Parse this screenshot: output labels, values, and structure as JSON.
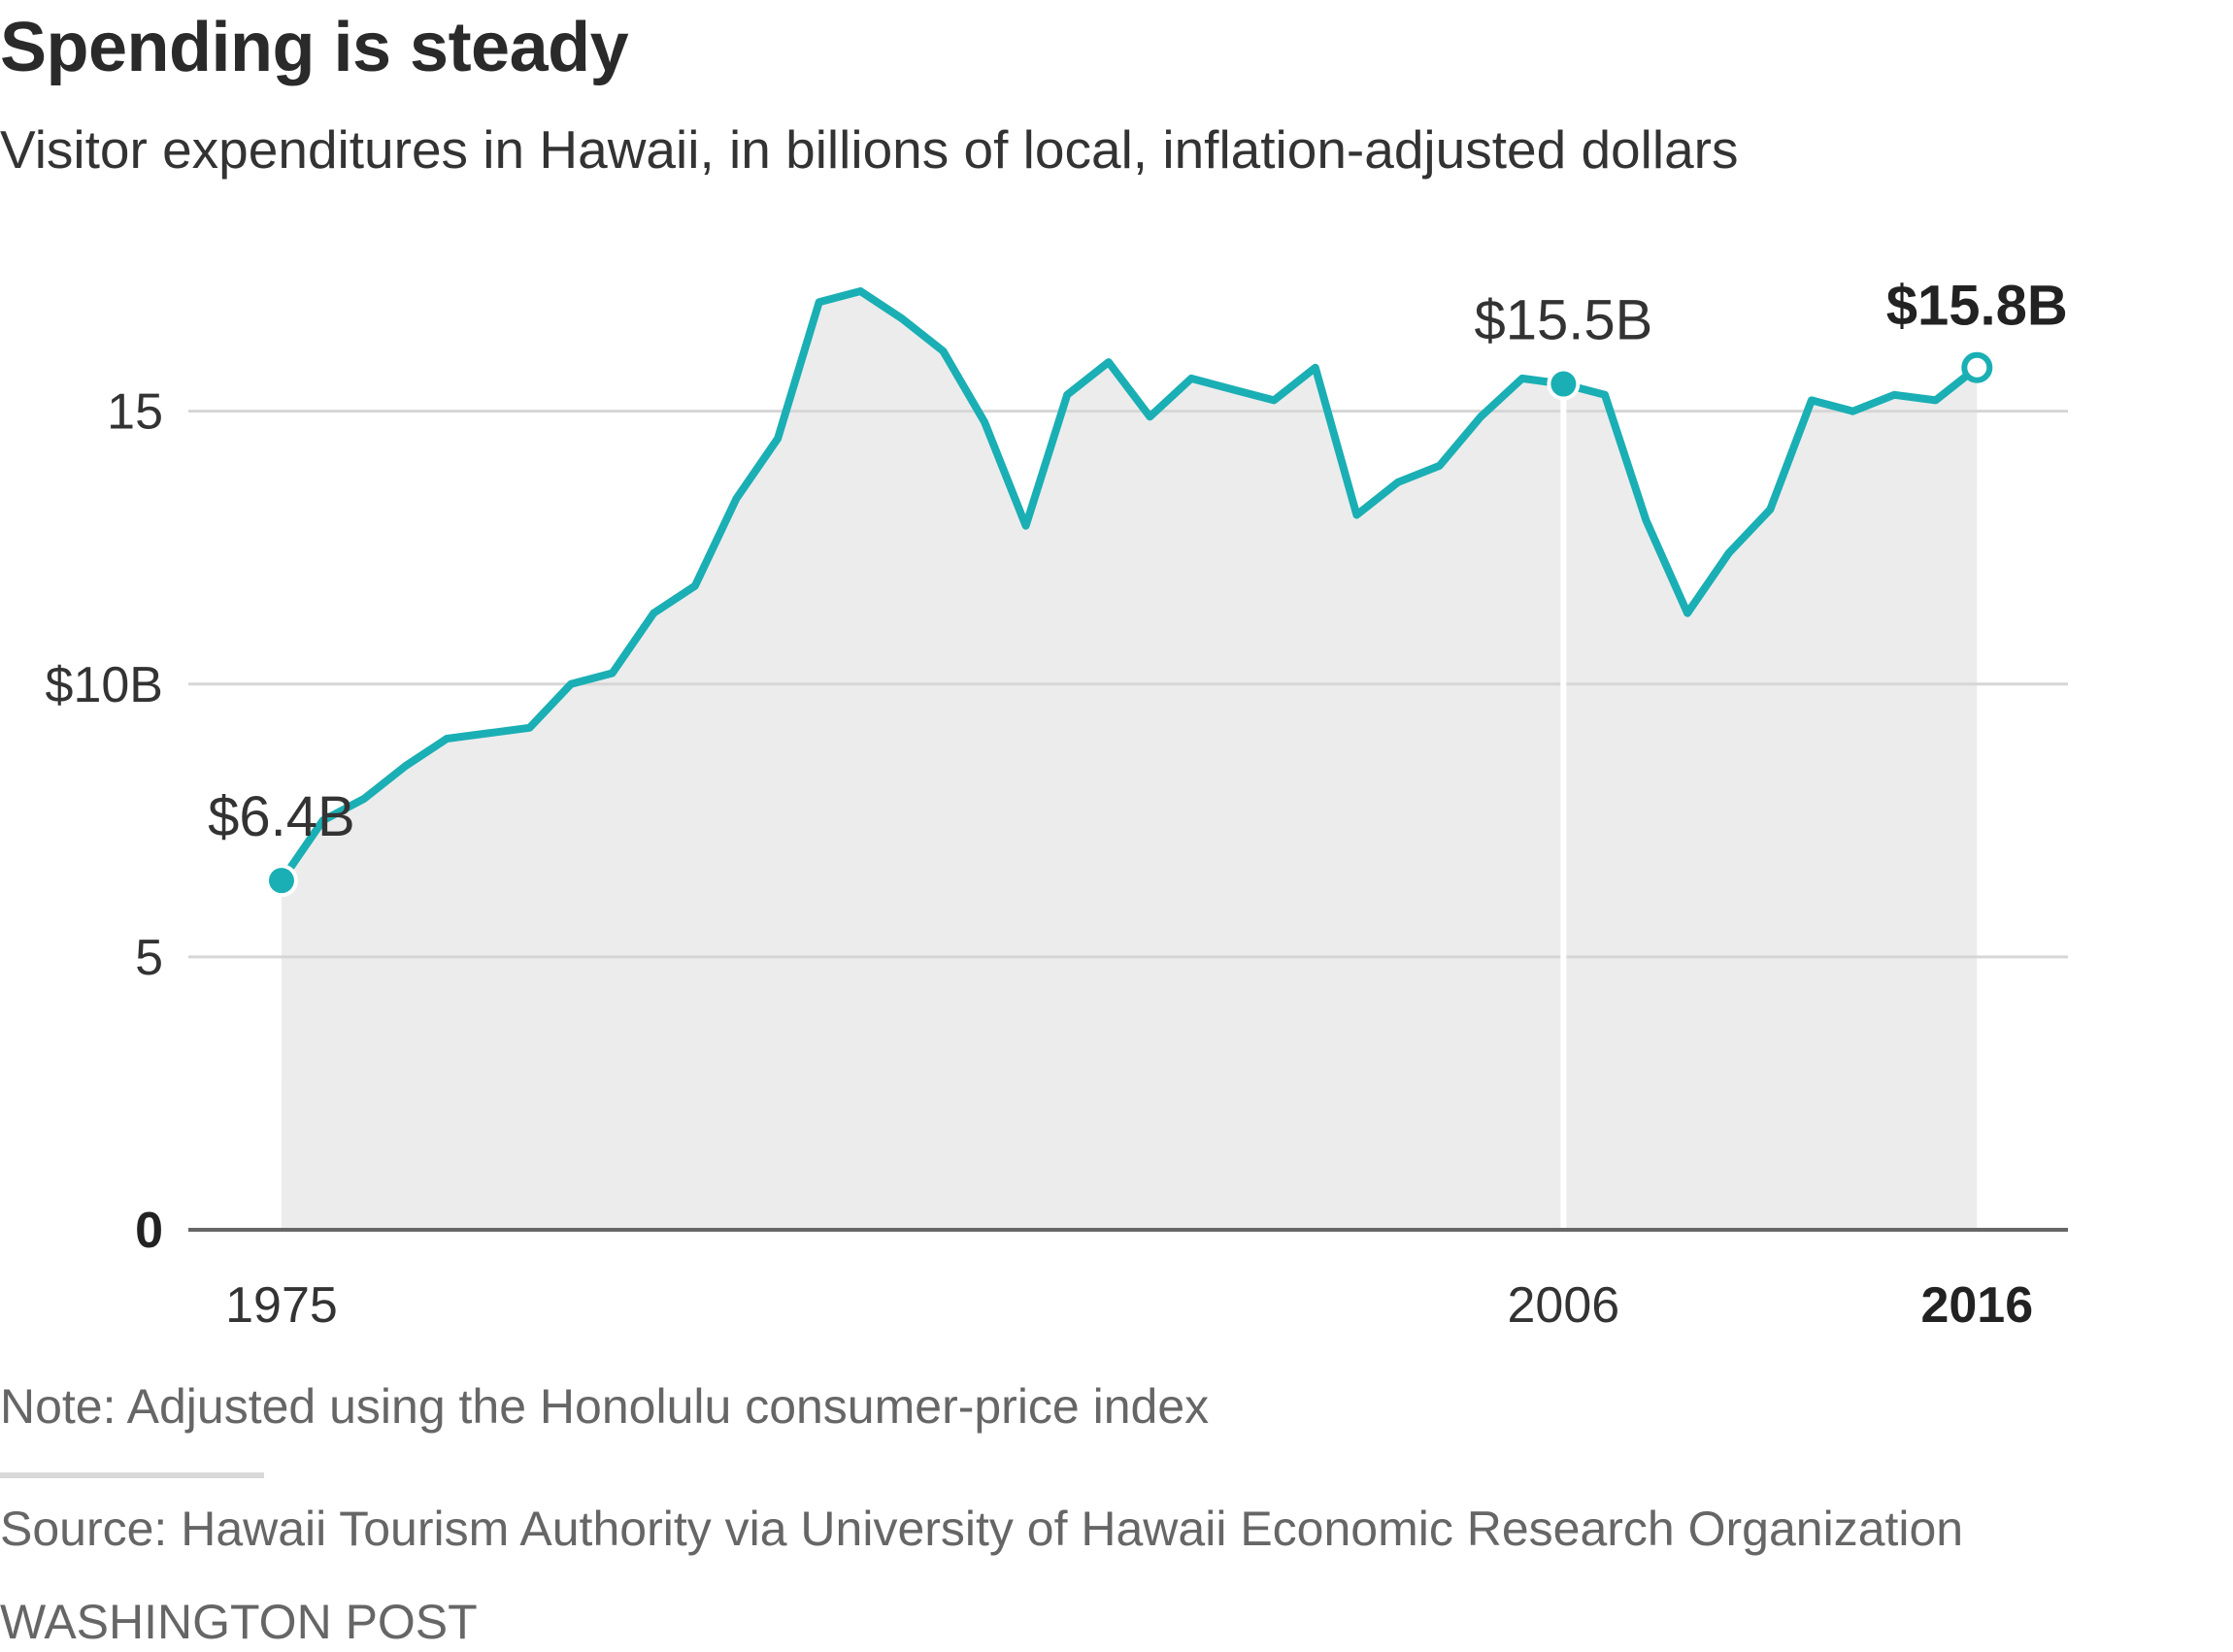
{
  "chart_data": {
    "type": "area",
    "title": "Spending is steady",
    "subtitle": "Visitor expenditures in Hawaii, in billions of local, inflation-adjusted dollars",
    "x": [
      1975,
      1976,
      1977,
      1978,
      1979,
      1980,
      1981,
      1982,
      1983,
      1984,
      1985,
      1986,
      1987,
      1988,
      1989,
      1990,
      1991,
      1992,
      1993,
      1994,
      1995,
      1996,
      1997,
      1998,
      1999,
      2000,
      2001,
      2002,
      2003,
      2004,
      2005,
      2006,
      2007,
      2008,
      2009,
      2010,
      2011,
      2012,
      2013,
      2014,
      2015,
      2016
    ],
    "series": [
      {
        "values": [
          6.4,
          7.5,
          7.9,
          8.5,
          9.0,
          9.1,
          9.2,
          10.0,
          10.2,
          11.3,
          11.8,
          13.4,
          14.5,
          17.0,
          17.2,
          16.7,
          16.1,
          14.8,
          12.9,
          15.3,
          15.9,
          14.9,
          15.6,
          15.4,
          15.2,
          15.8,
          13.1,
          13.7,
          14.0,
          14.9,
          15.6,
          15.5,
          15.3,
          13.0,
          11.3,
          12.4,
          13.2,
          15.2,
          15.0,
          15.3,
          15.2,
          15.8
        ]
      }
    ],
    "xlim": [
      1972.7,
      2018.2
    ],
    "ylim": [
      0,
      18
    ],
    "yticks": [
      {
        "value": 15,
        "label": "15"
      },
      {
        "value": 10,
        "label": "$10B"
      },
      {
        "value": 5,
        "label": "5"
      },
      {
        "value": 0,
        "label": "0"
      }
    ],
    "xticks": [
      {
        "value": 1975,
        "label": "1975",
        "bold": false
      },
      {
        "value": 2006,
        "label": "2006",
        "bold": false
      },
      {
        "value": 2016,
        "label": "2016",
        "bold": true
      }
    ],
    "annotations": [
      {
        "x": 1975,
        "y": 6.4,
        "label": "$6.4B",
        "bold": false,
        "marker": "filled"
      },
      {
        "x": 2006,
        "y": 15.5,
        "label": "$15.5B",
        "bold": false,
        "marker": "filled"
      },
      {
        "x": 2016,
        "y": 15.8,
        "label": "$15.8B",
        "bold": true,
        "marker": "hollow"
      }
    ],
    "grid": true,
    "colors": {
      "line": "#1aafb4",
      "area": "#ececec",
      "grid": "#d6d6d6",
      "axis": "#666666",
      "highlight_rule": "#ffffff"
    }
  },
  "note": "Note: Adjusted using the Honolulu consumer-price index",
  "source": "Source: Hawaii Tourism Authority via University of Hawaii Economic Research Organization",
  "credit": "WASHINGTON POST"
}
